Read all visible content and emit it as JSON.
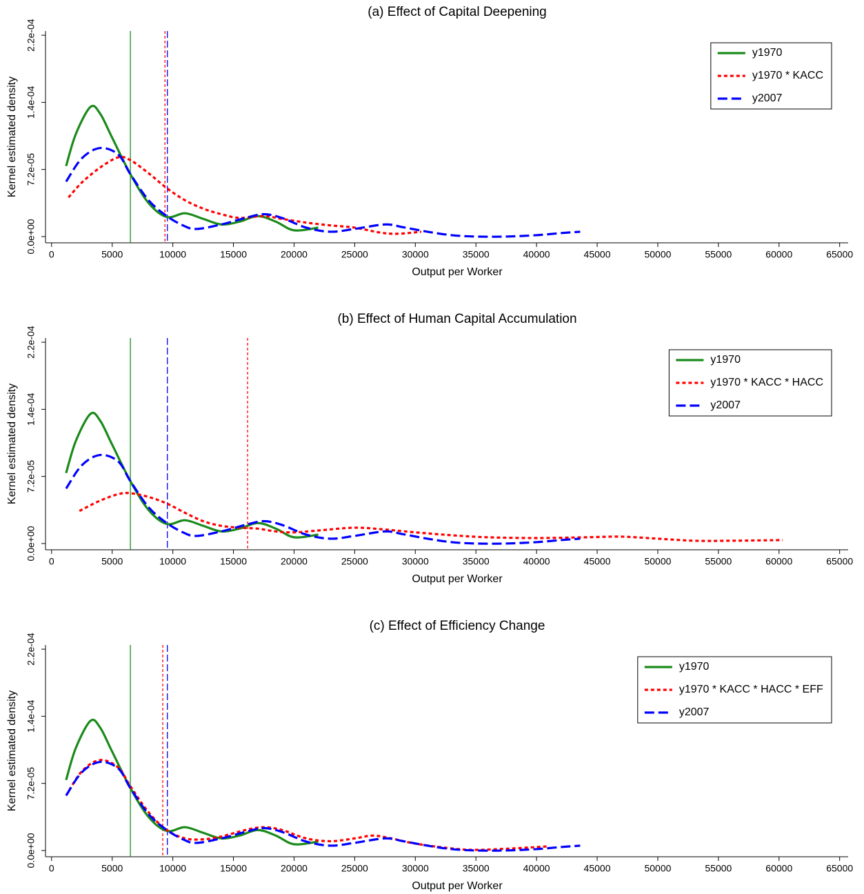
{
  "chart_data": [
    {
      "type": "line",
      "title": "(a) Effect of Capital Deepening",
      "xlabel": "Output per Worker",
      "ylabel": "Kernel estimated density",
      "xlim": [
        -500,
        65700
      ],
      "ylim": [
        -6.7e-06,
        0.0002205
      ],
      "xticks": [
        0,
        5000,
        10000,
        15000,
        20000,
        25000,
        30000,
        35000,
        40000,
        45000,
        50000,
        55000,
        60000,
        65000
      ],
      "yticks": [
        {
          "value": 0,
          "label": "0.0e+00"
        },
        {
          "value": 7.2e-05,
          "label": "7.2e-05"
        },
        {
          "value": 0.000144,
          "label": "1.4e-04"
        },
        {
          "value": 0.000216,
          "label": "2.2e-04"
        }
      ],
      "legend": "top-right",
      "series": [
        {
          "name": "y1970",
          "color": "#1a8a1a",
          "dash": "solid",
          "mean": 6500,
          "x": [
            1200,
            2000,
            3200,
            4000,
            5000,
            6500,
            8000,
            9500,
            11000,
            12500,
            14000,
            15500,
            17000,
            18500,
            20000,
            22000
          ],
          "values": [
            7.57e-05,
            0.00011,
            0.000139,
            0.000132,
            0.000106,
            6.7e-05,
            3.6e-05,
            2.1e-05,
            2.5e-05,
            1.9e-05,
            1.3e-05,
            1.6e-05,
            2.2e-05,
            1.6e-05,
            6.7e-06,
            9.6e-06
          ]
        },
        {
          "name": "y1970 * KACC",
          "color": "#ff0000",
          "dash": "dotted",
          "mean": 9350,
          "x": [
            1400,
            2500,
            4000,
            5500,
            6500,
            8000,
            9500,
            11000,
            12500,
            14000,
            15500,
            17500,
            19000,
            21000,
            23000,
            25000,
            27000,
            28500,
            30500
          ],
          "values": [
            4.2e-05,
            5.8e-05,
            7.4e-05,
            8.5e-05,
            8.2e-05,
            6.8e-05,
            5.2e-05,
            3.9e-05,
            3e-05,
            2.4e-05,
            2e-05,
            2.2e-05,
            1.9e-05,
            1.5e-05,
            1.2e-05,
            9.6e-06,
            4.5e-06,
            3e-06,
            5.2e-06
          ]
        },
        {
          "name": "y2007",
          "color": "#0000ff",
          "dash": "dashed",
          "mean": 9550,
          "x": [
            1200,
            2500,
            4000,
            5500,
            6500,
            8000,
            9500,
            11000,
            12000,
            14000,
            16000,
            17500,
            19000,
            21000,
            23000,
            25000,
            27500,
            29000,
            31000,
            33000,
            35000,
            37500,
            40000,
            42000,
            43600
          ],
          "values": [
            5.9e-05,
            8.4e-05,
            9.5e-05,
            8.8e-05,
            6.7e-05,
            3.9e-05,
            2.2e-05,
            1.1e-05,
            8.2e-06,
            1.3e-05,
            2e-05,
            2.4e-05,
            2e-05,
            9.6e-06,
            5.2e-06,
            8.2e-06,
            1.3e-05,
            1e-05,
            5.2e-06,
            1.5e-06,
            0,
            0,
            1.5e-06,
            3.7e-06,
            5.2e-06
          ]
        }
      ]
    },
    {
      "type": "line",
      "title": "(b) Effect of Human Capital Accumulation",
      "xlabel": "Output per Worker",
      "ylabel": "Kernel estimated density",
      "xlim": [
        -500,
        65700
      ],
      "ylim": [
        -6.7e-06,
        0.0002205
      ],
      "xticks": [
        0,
        5000,
        10000,
        15000,
        20000,
        25000,
        30000,
        35000,
        40000,
        45000,
        50000,
        55000,
        60000,
        65000
      ],
      "yticks": [
        {
          "value": 0,
          "label": "0.0e+00"
        },
        {
          "value": 7.2e-05,
          "label": "7.2e-05"
        },
        {
          "value": 0.000144,
          "label": "1.4e-04"
        },
        {
          "value": 0.000216,
          "label": "2.2e-04"
        }
      ],
      "legend": "top-right",
      "series": [
        {
          "name": "y1970",
          "color": "#1a8a1a",
          "dash": "solid",
          "mean": 6500,
          "x": [
            1200,
            2000,
            3200,
            4000,
            5000,
            6500,
            8000,
            9500,
            11000,
            12500,
            14000,
            15500,
            17000,
            18500,
            20000,
            22000
          ],
          "values": [
            7.57e-05,
            0.00011,
            0.000139,
            0.000132,
            0.000106,
            6.7e-05,
            3.6e-05,
            2.1e-05,
            2.5e-05,
            1.9e-05,
            1.3e-05,
            1.6e-05,
            2.2e-05,
            1.6e-05,
            6.7e-06,
            9.6e-06
          ]
        },
        {
          "name": "y1970 * KACC * HACC",
          "color": "#ff0000",
          "dash": "dotted",
          "mean": 16170,
          "x": [
            2300,
            4000,
            5500,
            6500,
            8000,
            9500,
            11000,
            12500,
            14000,
            15500,
            17000,
            18500,
            20000,
            22000,
            25000,
            27500,
            30000,
            33000,
            36000,
            40000,
            44000,
            47000,
            50000,
            53000,
            56000,
            60300
          ],
          "values": [
            3.5e-05,
            4.6e-05,
            5.3e-05,
            5.4e-05,
            5e-05,
            4.3e-05,
            3.3e-05,
            2.4e-05,
            1.9e-05,
            1.7e-05,
            1.6e-05,
            1.3e-05,
            1.2e-05,
            1.4e-05,
            1.7e-05,
            1.5e-05,
            1.2e-05,
            8.9e-06,
            6.7e-06,
            5.9e-06,
            6.7e-06,
            7.4e-06,
            5.2e-06,
            3e-06,
            3e-06,
            3.7e-06
          ]
        },
        {
          "name": "y2007",
          "color": "#0000ff",
          "dash": "dashed",
          "mean": 9550,
          "x": [
            1200,
            2500,
            4000,
            5500,
            6500,
            8000,
            9500,
            11000,
            12000,
            14000,
            16000,
            17500,
            19000,
            21000,
            23000,
            25000,
            27500,
            29000,
            31000,
            33000,
            35000,
            37500,
            40000,
            42000,
            43600
          ],
          "values": [
            5.9e-05,
            8.4e-05,
            9.5e-05,
            8.8e-05,
            6.7e-05,
            3.9e-05,
            2.2e-05,
            1.1e-05,
            8.2e-06,
            1.3e-05,
            2e-05,
            2.4e-05,
            2e-05,
            9.6e-06,
            5.2e-06,
            8.2e-06,
            1.3e-05,
            1e-05,
            5.2e-06,
            1.5e-06,
            0,
            0,
            1.5e-06,
            3.7e-06,
            5.2e-06
          ]
        }
      ]
    },
    {
      "type": "line",
      "title": "(c) Effect of Efficiency Change",
      "xlabel": "Output per Worker",
      "ylabel": "Kernel estimated density",
      "xlim": [
        -500,
        65700
      ],
      "ylim": [
        -6.7e-06,
        0.0002205
      ],
      "xticks": [
        0,
        5000,
        10000,
        15000,
        20000,
        25000,
        30000,
        35000,
        40000,
        45000,
        50000,
        55000,
        60000,
        65000
      ],
      "yticks": [
        {
          "value": 0,
          "label": "0.0e+00"
        },
        {
          "value": 7.2e-05,
          "label": "7.2e-05"
        },
        {
          "value": 0.000144,
          "label": "1.4e-04"
        },
        {
          "value": 0.000216,
          "label": "2.2e-04"
        }
      ],
      "legend": "top-right",
      "series": [
        {
          "name": "y1970",
          "color": "#1a8a1a",
          "dash": "solid",
          "mean": 6500,
          "x": [
            1200,
            2000,
            3200,
            4000,
            5000,
            6500,
            8000,
            9500,
            11000,
            12500,
            14000,
            15500,
            17000,
            18500,
            20000,
            22000
          ],
          "values": [
            7.57e-05,
            0.00011,
            0.000139,
            0.000132,
            0.000106,
            6.7e-05,
            3.6e-05,
            2.1e-05,
            2.5e-05,
            1.9e-05,
            1.3e-05,
            1.6e-05,
            2.2e-05,
            1.6e-05,
            6.7e-06,
            9.6e-06
          ]
        },
        {
          "name": "y1970 * KACC * HACC * EFF",
          "color": "#ff0000",
          "dash": "dotted",
          "mean": 9170,
          "x": [
            1200,
            2500,
            4000,
            5500,
            6500,
            8000,
            9500,
            11000,
            12500,
            14000,
            16000,
            17500,
            19000,
            21000,
            23000,
            25000,
            26500,
            28000,
            30000,
            33000,
            35000,
            38000,
            41000
          ],
          "values": [
            5.9e-05,
            8.5e-05,
            9.7e-05,
            8.9e-05,
            6.9e-05,
            4.1e-05,
            2.2e-05,
            1.3e-05,
            1.2e-05,
            1.5e-05,
            2.2e-05,
            2.5e-05,
            2.2e-05,
            1.3e-05,
            1e-05,
            1.3e-05,
            1.6e-05,
            1.3e-05,
            7.4e-06,
            2.2e-06,
            7e-07,
            2.2e-06,
            4.5e-06
          ]
        },
        {
          "name": "y2007",
          "color": "#0000ff",
          "dash": "dashed",
          "mean": 9550,
          "x": [
            1200,
            2500,
            4000,
            5500,
            6500,
            8000,
            9500,
            11000,
            12000,
            14000,
            16000,
            17500,
            19000,
            21000,
            23000,
            25000,
            27500,
            29000,
            31000,
            33000,
            35000,
            37500,
            40000,
            42000,
            43600
          ],
          "values": [
            5.9e-05,
            8.4e-05,
            9.5e-05,
            8.8e-05,
            6.7e-05,
            3.9e-05,
            2.2e-05,
            1.1e-05,
            8.2e-06,
            1.3e-05,
            2e-05,
            2.4e-05,
            2e-05,
            9.6e-06,
            5.2e-06,
            8.2e-06,
            1.3e-05,
            1e-05,
            5.2e-06,
            1.5e-06,
            0,
            0,
            1.5e-06,
            3.7e-06,
            5.2e-06
          ]
        }
      ]
    }
  ]
}
